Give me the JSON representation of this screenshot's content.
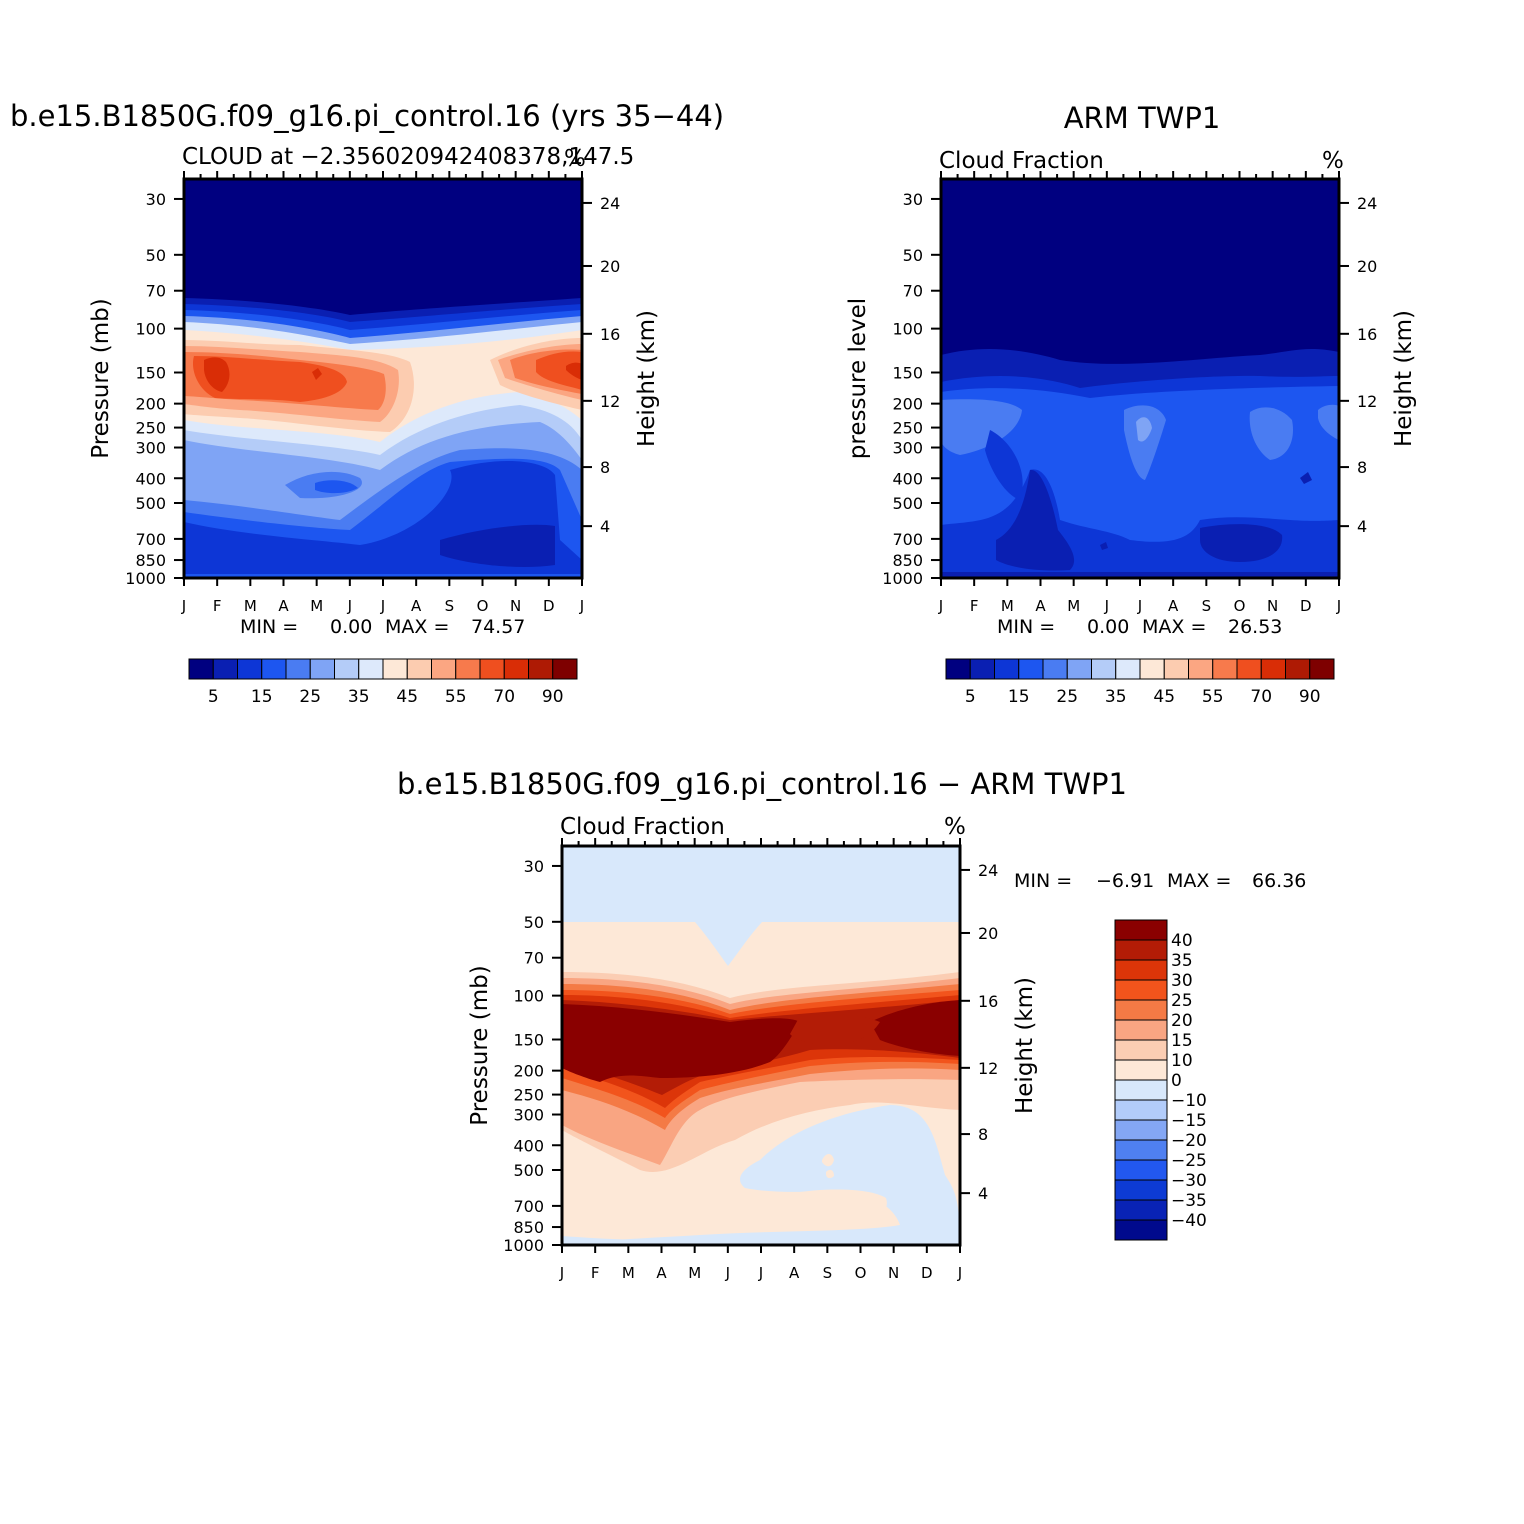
{
  "chart_data": [
    {
      "type": "heatmap",
      "panel": "model",
      "title": "b.e15.B1850G.f09_g16.pi_control.16 (yrs 35−44)",
      "subtitle_left": "CLOUD at −2.356020942408378,147.5",
      "subtitle_right": "%",
      "ylabel": "Pressure (mb)",
      "ylabel_right": "Height (km)",
      "x_ticks": [
        "J",
        "F",
        "M",
        "A",
        "M",
        "J",
        "J",
        "A",
        "S",
        "O",
        "N",
        "D",
        "J"
      ],
      "y_ticks": [
        "30",
        "50",
        "70",
        "100",
        "150",
        "200",
        "250",
        "300",
        "400",
        "500",
        "700",
        "850",
        "1000"
      ],
      "y_ticks_right": [
        "24",
        "20",
        "16",
        "12",
        "8",
        "4"
      ],
      "stats": {
        "min_label": "MIN =",
        "min": "0.00",
        "max_label": "MAX =",
        "max": "74.57"
      },
      "colorbar_labels": [
        "5",
        "15",
        "25",
        "35",
        "45",
        "55",
        "70",
        "90"
      ]
    },
    {
      "type": "heatmap",
      "panel": "observations",
      "title": "ARM TWP1",
      "subtitle_left": "Cloud Fraction",
      "subtitle_right": "%",
      "ylabel": "pressure level",
      "ylabel_right": "Height (km)",
      "x_ticks": [
        "J",
        "F",
        "M",
        "A",
        "M",
        "J",
        "J",
        "A",
        "S",
        "O",
        "N",
        "D",
        "J"
      ],
      "y_ticks": [
        "30",
        "50",
        "70",
        "100",
        "150",
        "200",
        "250",
        "300",
        "400",
        "500",
        "700",
        "850",
        "1000"
      ],
      "y_ticks_right": [
        "24",
        "20",
        "16",
        "12",
        "8",
        "4"
      ],
      "stats": {
        "min_label": "MIN =",
        "min": "0.00",
        "max_label": "MAX =",
        "max": "26.53"
      },
      "colorbar_labels": [
        "5",
        "15",
        "25",
        "35",
        "45",
        "55",
        "70",
        "90"
      ]
    },
    {
      "type": "heatmap",
      "panel": "difference",
      "title": "b.e15.B1850G.f09_g16.pi_control.16 − ARM TWP1",
      "subtitle_left": "Cloud Fraction",
      "subtitle_right": "%",
      "ylabel": "Pressure (mb)",
      "ylabel_right": "Height (km)",
      "x_ticks": [
        "J",
        "F",
        "M",
        "A",
        "M",
        "J",
        "J",
        "A",
        "S",
        "O",
        "N",
        "D",
        "J"
      ],
      "y_ticks": [
        "30",
        "50",
        "70",
        "100",
        "150",
        "200",
        "250",
        "300",
        "400",
        "500",
        "700",
        "850",
        "1000"
      ],
      "y_ticks_right": [
        "24",
        "20",
        "16",
        "12",
        "8",
        "4"
      ],
      "stats": {
        "min_label": "MIN =",
        "min": "−6.91",
        "max_label": "MAX =",
        "max": "66.36"
      },
      "colorbar_labels": [
        "40",
        "35",
        "30",
        "25",
        "20",
        "15",
        "10",
        "0",
        "−10",
        "−15",
        "−20",
        "−25",
        "−30",
        "−35",
        "−40"
      ]
    }
  ],
  "colors": {
    "seq_palette": [
      "#000080",
      "#0a1fb2",
      "#0d36d6",
      "#1d56f0",
      "#4a7cf2",
      "#7fa4f5",
      "#b4ccf8",
      "#dde9fb",
      "#fde8d7",
      "#fcccb0",
      "#fba682",
      "#f77a4c",
      "#ef4f1f",
      "#d92d06",
      "#ae1a04",
      "#7e0000"
    ],
    "diff_palette": [
      "#8a0000",
      "#b31c06",
      "#dc3509",
      "#f2541c",
      "#f47a45",
      "#f9a582",
      "#fbcdb3",
      "#fde8d7",
      "#d8e8fb",
      "#b2ccfa",
      "#84a7f4",
      "#4f80f1",
      "#2258ef",
      "#0d3bd4",
      "#0923b5",
      "#000a8d"
    ]
  }
}
